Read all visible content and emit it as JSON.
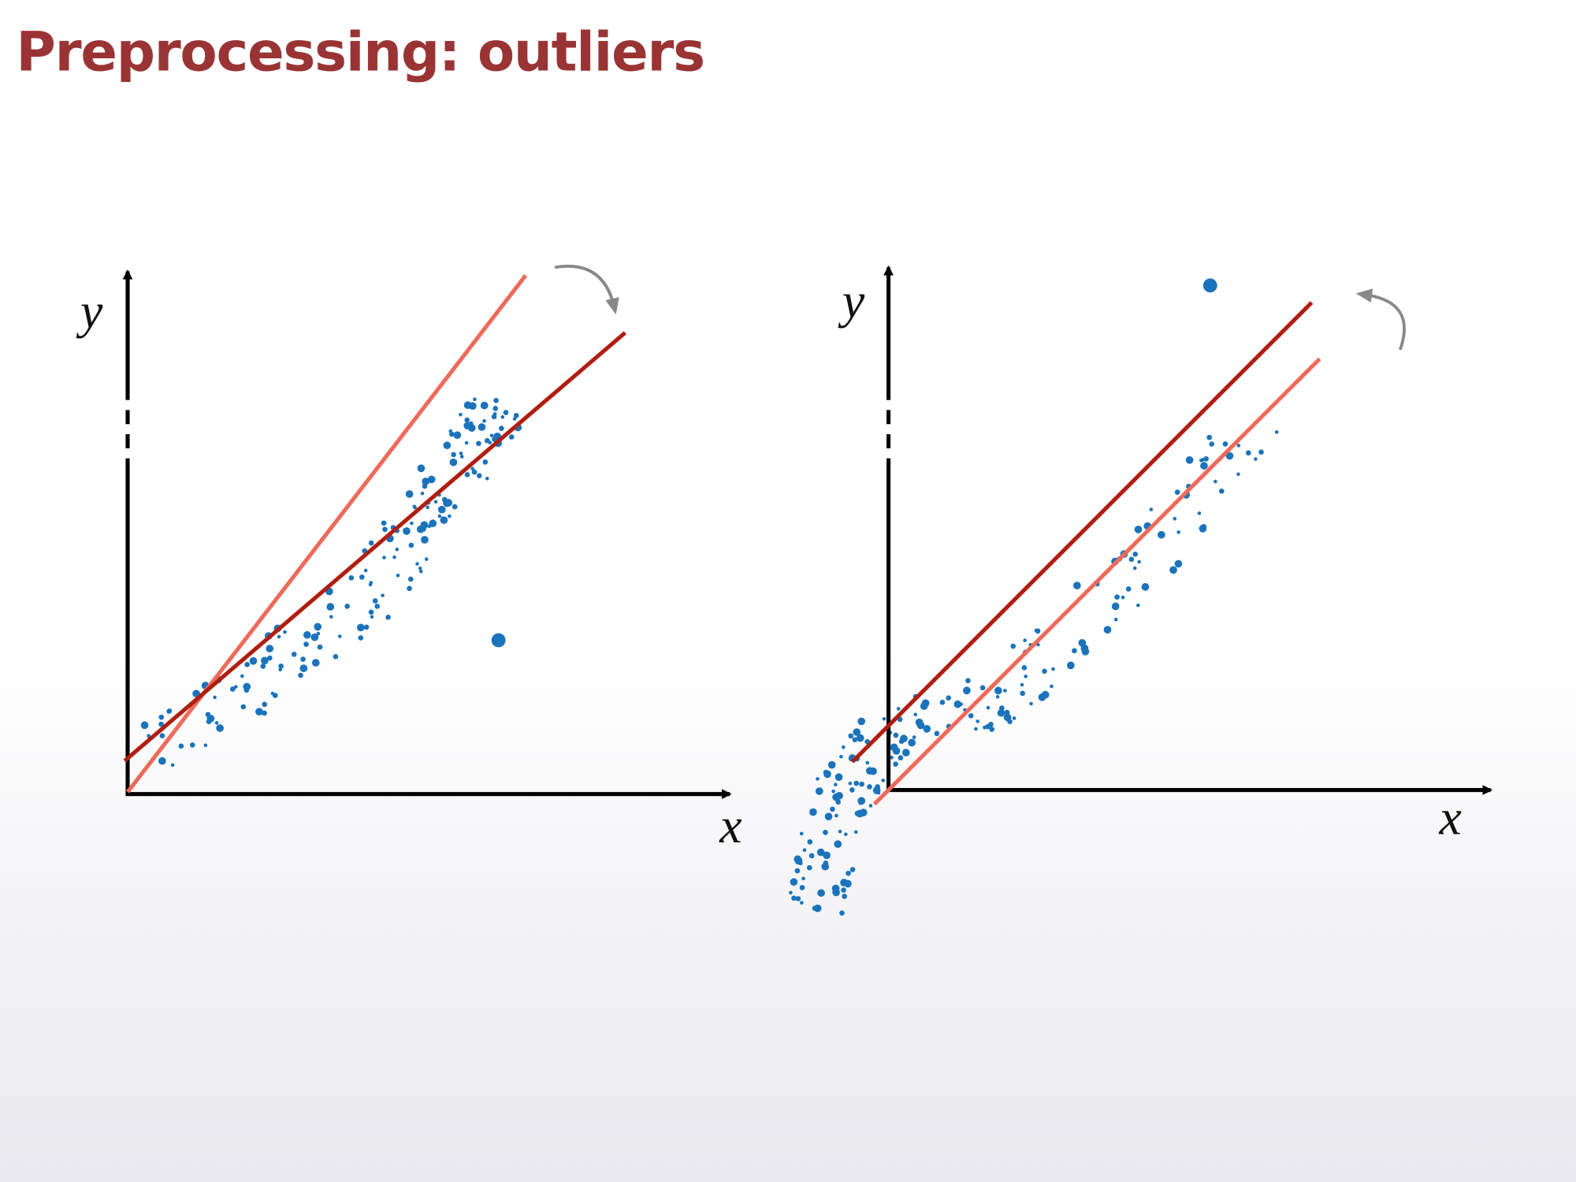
{
  "header": {
    "title": "Preprocessing: outliers"
  },
  "panels": [
    {
      "y_label": "y",
      "x_label": "x"
    },
    {
      "y_label": "y",
      "x_label": "x"
    }
  ]
}
